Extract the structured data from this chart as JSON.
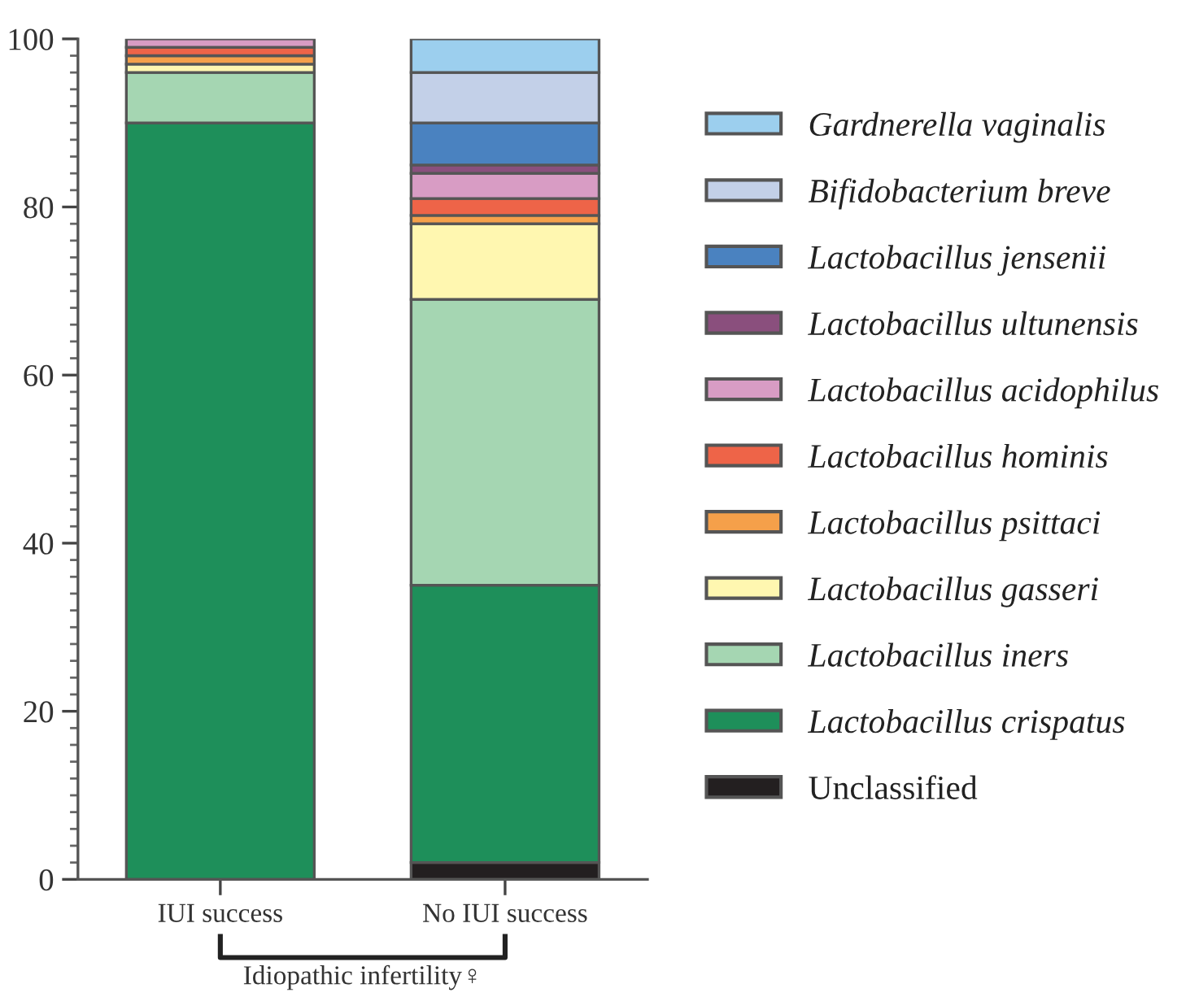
{
  "chart_data": {
    "type": "bar",
    "stacked": true,
    "categories": [
      "IUI success",
      "No IUI success"
    ],
    "series": [
      {
        "name": "Unclassified",
        "color": "#231f20",
        "values": [
          0,
          2
        ]
      },
      {
        "name": "Lactobacillus crispatus",
        "color": "#1e8f5a",
        "values": [
          90,
          33
        ]
      },
      {
        "name": "Lactobacillus iners",
        "color": "#a5d6b2",
        "values": [
          6,
          34
        ]
      },
      {
        "name": "Lactobacillus gasseri",
        "color": "#fff7b0",
        "values": [
          1,
          9
        ]
      },
      {
        "name": "Lactobacillus psittaci",
        "color": "#f5a04a",
        "values": [
          1,
          1
        ]
      },
      {
        "name": "Lactobacillus hominis",
        "color": "#ee6448",
        "values": [
          1,
          2
        ]
      },
      {
        "name": "Lactobacillus acidophilus",
        "color": "#d89cc4",
        "values": [
          1,
          3
        ]
      },
      {
        "name": "Lactobacillus ultunensis",
        "color": "#8a4f7d",
        "values": [
          0,
          1
        ]
      },
      {
        "name": "Lactobacillus jensenii",
        "color": "#4a82c0",
        "values": [
          0,
          5
        ]
      },
      {
        "name": "Bifidobacterium breve",
        "color": "#c3d0e8",
        "values": [
          0,
          6
        ]
      },
      {
        "name": "Gardnerella vaginalis",
        "color": "#9ccfee",
        "values": [
          0,
          4
        ]
      }
    ],
    "ylim": [
      0,
      100
    ],
    "yticks": [
      0,
      {
        "value": 2,
        "label": null
      },
      {
        "value": 4,
        "label": null
      },
      {
        "value": 6,
        "label": null
      },
      {
        "value": 8,
        "label": null
      },
      {
        "value": 10,
        "label": null
      },
      {
        "value": 12,
        "label": null
      },
      {
        "value": 14,
        "label": null
      },
      {
        "value": 16,
        "label": null
      },
      {
        "value": 18,
        "label": null
      },
      20,
      {
        "value": 22,
        "label": null
      },
      {
        "value": 24,
        "label": null
      },
      {
        "value": 26,
        "label": null
      },
      {
        "value": 28,
        "label": null
      },
      {
        "value": 30,
        "label": null
      },
      {
        "value": 32,
        "label": null
      },
      {
        "value": 34,
        "label": null
      },
      {
        "value": 36,
        "label": null
      },
      {
        "value": 38,
        "label": null
      },
      40,
      {
        "value": 42,
        "label": null
      },
      {
        "value": 44,
        "label": null
      },
      {
        "value": 46,
        "label": null
      },
      {
        "value": 48,
        "label": null
      },
      {
        "value": 50,
        "label": null
      },
      {
        "value": 52,
        "label": null
      },
      {
        "value": 54,
        "label": null
      },
      {
        "value": 56,
        "label": null
      },
      {
        "value": 58,
        "label": null
      },
      60,
      {
        "value": 62,
        "label": null
      },
      {
        "value": 64,
        "label": null
      },
      {
        "value": 66,
        "label": null
      },
      {
        "value": 68,
        "label": null
      },
      {
        "value": 70,
        "label": null
      },
      {
        "value": 72,
        "label": null
      },
      {
        "value": 74,
        "label": null
      },
      {
        "value": 76,
        "label": null
      },
      {
        "value": 78,
        "label": null
      },
      80,
      {
        "value": 82,
        "label": null
      },
      {
        "value": 84,
        "label": null
      },
      {
        "value": 86,
        "label": null
      },
      {
        "value": 88,
        "label": null
      },
      {
        "value": 90,
        "label": null
      },
      {
        "value": 92,
        "label": null
      },
      {
        "value": 94,
        "label": null
      },
      {
        "value": 96,
        "label": null
      },
      {
        "value": 98,
        "label": null
      },
      100
    ],
    "grid": false,
    "legend": "right",
    "annotations": [
      "Idiopathic infertility♀"
    ]
  }
}
